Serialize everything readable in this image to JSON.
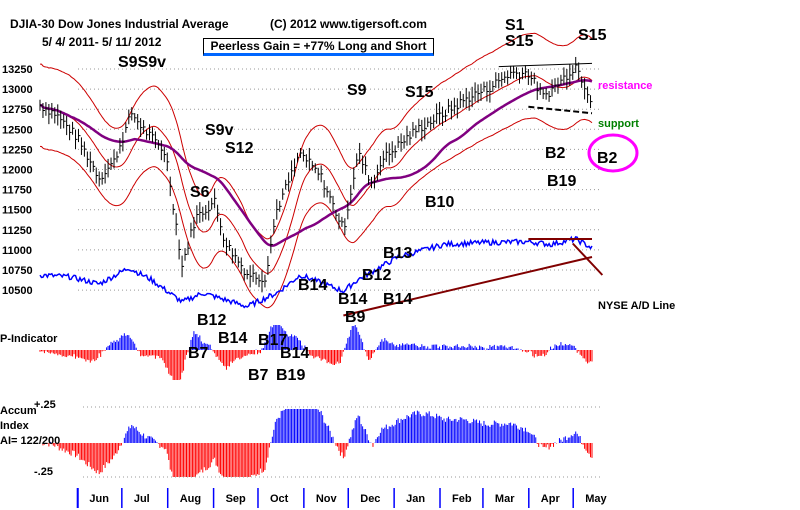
{
  "chart_data": {
    "type": "line",
    "title": "DJIA-30  Dow Jones Industrial Average",
    "copyright": "(C) 2012 www.tigersoft.com",
    "date_range": "5/ 4/ 2011- 5/ 11/ 2012",
    "gain_box": "Peerless Gain = +77% Long and Short",
    "y_ticks": [
      "13250",
      "13000",
      "12750",
      "12500",
      "12250",
      "12000",
      "11750",
      "11500",
      "11250",
      "11000",
      "10750",
      "10500"
    ],
    "y_tick_values": [
      13250,
      13000,
      12750,
      12500,
      12250,
      12000,
      11750,
      11500,
      11250,
      11000,
      10750,
      10500
    ],
    "ylim": [
      10400,
      13400
    ],
    "months": [
      "Jun",
      "Jul",
      "Aug",
      "Sep",
      "Oct",
      "Nov",
      "Dec",
      "Jan",
      "Feb",
      "Mar",
      "Apr",
      "May"
    ],
    "month_start_days": [
      28,
      58,
      89,
      120,
      150,
      181,
      211,
      242,
      273,
      302,
      333,
      363
    ],
    "price_series": {
      "name": "DJIA",
      "points": [
        [
          0,
          12800
        ],
        [
          10,
          12700
        ],
        [
          25,
          12400
        ],
        [
          40,
          11900
        ],
        [
          50,
          12100
        ],
        [
          62,
          12700
        ],
        [
          70,
          12500
        ],
        [
          85,
          12200
        ],
        [
          96,
          10800
        ],
        [
          105,
          11400
        ],
        [
          118,
          11600
        ],
        [
          125,
          11100
        ],
        [
          140,
          10700
        ],
        [
          152,
          10650
        ],
        [
          160,
          11500
        ],
        [
          176,
          12200
        ],
        [
          190,
          11900
        ],
        [
          205,
          11250
        ],
        [
          215,
          12200
        ],
        [
          225,
          11800
        ],
        [
          230,
          12100
        ],
        [
          242,
          12300
        ],
        [
          255,
          12500
        ],
        [
          273,
          12700
        ],
        [
          290,
          12900
        ],
        [
          302,
          13000
        ],
        [
          318,
          13200
        ],
        [
          330,
          13200
        ],
        [
          340,
          12900
        ],
        [
          352,
          13100
        ],
        [
          362,
          13300
        ],
        [
          373,
          12850
        ]
      ]
    },
    "ad_line": {
      "name": "NYSE A/D Line",
      "points": [
        [
          0,
          50
        ],
        [
          20,
          48
        ],
        [
          40,
          40
        ],
        [
          60,
          58
        ],
        [
          75,
          45
        ],
        [
          96,
          20
        ],
        [
          110,
          30
        ],
        [
          140,
          15
        ],
        [
          160,
          30
        ],
        [
          176,
          50
        ],
        [
          205,
          32
        ],
        [
          215,
          45
        ],
        [
          242,
          70
        ],
        [
          273,
          84
        ],
        [
          300,
          86
        ],
        [
          330,
          87
        ],
        [
          345,
          84
        ],
        [
          362,
          90
        ],
        [
          373,
          80
        ]
      ]
    },
    "signals": [
      {
        "label": "S9S9v",
        "day": 45,
        "color": "#000"
      },
      {
        "label": "S9v",
        "day": 120,
        "color": "#000"
      },
      {
        "label": "S12",
        "day": 125,
        "color": "#000"
      },
      {
        "label": "S6",
        "day": 105,
        "color": "#000"
      },
      {
        "label": "S9",
        "day": 210,
        "color": "#000"
      },
      {
        "label": "S15",
        "day": 240,
        "color": "#000"
      },
      {
        "label": "S1",
        "day": 318,
        "color": "#000"
      },
      {
        "label": "S15",
        "day": 322,
        "color": "#000"
      },
      {
        "label": "S15",
        "day": 363,
        "color": "#000"
      },
      {
        "label": "B2",
        "day": 340,
        "color": "#000"
      },
      {
        "label": "B19",
        "day": 342,
        "color": "#000"
      },
      {
        "label": "B2",
        "day": 362,
        "color": "#000"
      },
      {
        "label": "B10",
        "day": 260,
        "color": "#000"
      },
      {
        "label": "B13",
        "day": 230,
        "color": "#000"
      },
      {
        "label": "B14",
        "day": 180,
        "color": "#000"
      },
      {
        "label": "B14",
        "day": 200,
        "color": "#000"
      },
      {
        "label": "B12",
        "day": 208,
        "color": "#000"
      },
      {
        "label": "B14",
        "day": 203,
        "color": "#000"
      },
      {
        "label": "B9",
        "day": 205,
        "color": "#000"
      },
      {
        "label": "B12",
        "day": 104,
        "color": "#000"
      },
      {
        "label": "B14",
        "day": 120,
        "color": "#000"
      },
      {
        "label": "B17",
        "day": 150,
        "color": "#000"
      },
      {
        "label": "B14",
        "day": 162,
        "color": "#000"
      },
      {
        "label": "B7",
        "day": 100,
        "color": "#000"
      },
      {
        "label": "B7",
        "day": 142,
        "color": "#000"
      },
      {
        "label": "B19",
        "day": 150,
        "color": "#000"
      }
    ],
    "annotations": {
      "resistance": "resistance",
      "support": "support",
      "ad_label": "NYSE A/D Line"
    },
    "p_indicator_label": "P-Indicator",
    "accum": {
      "label1": "Accum",
      "label2": "Index",
      "label3": "AI= 122/200",
      "top": "+.25",
      "bottom": "-.25"
    },
    "colors": {
      "up": "#0000ff",
      "down": "#ff0000",
      "ma_long": "#800080",
      "band": "#cc0000",
      "resistance": "#ff00ff",
      "support": "#008000",
      "trend": "#800000"
    }
  }
}
